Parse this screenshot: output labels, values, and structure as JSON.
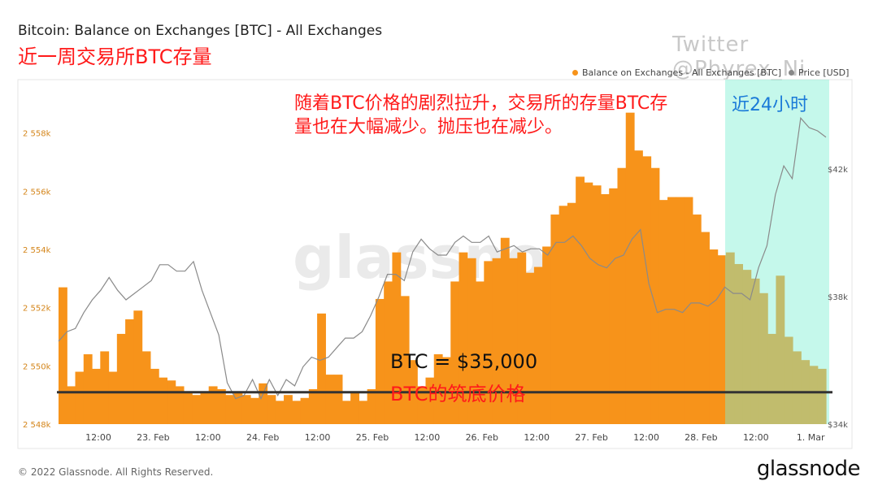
{
  "title": "Bitcoin: Balance on Exchanges [BTC] - All Exchanges",
  "watermark_text": "Twitter @Phyrex_Ni",
  "annotation_title": "近一周交易所BTC存量",
  "annotation_main": "随着BTC价格的剧烈拉升，交易所的存量BTC存量也在大幅减少。抛压也在减少。",
  "annotation_24h": "近24小时",
  "annotation_price": "BTC = $35,000",
  "annotation_bottom": "BTC的筑底价格",
  "legend": {
    "balance_label": "Balance on Exchanges - All Exchanges [BTC]",
    "balance_color": "#f7931a",
    "price_label": "Price [USD]",
    "price_color": "#888888"
  },
  "footer": "© 2022 Glassnode. All Rights Reserved.",
  "brand": "glassnode",
  "bg_watermark": "glassnode",
  "chart_data": {
    "type": "bar",
    "x_ticks": [
      "12:00",
      "23. Feb",
      "12:00",
      "24. Feb",
      "12:00",
      "25. Feb",
      "12:00",
      "26. Feb",
      "12:00",
      "27. Feb",
      "12:00",
      "28. Feb",
      "12:00",
      "1. Mar"
    ],
    "y_left_ticks": [
      "2 548k",
      "2 550k",
      "2 552k",
      "2 554k",
      "2 556k",
      "2 558k"
    ],
    "y_left_range": [
      2548000,
      2559500
    ],
    "y_right_ticks": [
      "$34k",
      "$38k",
      "$42k"
    ],
    "y_right_range": [
      34000,
      44500
    ],
    "threshold_price": 35000,
    "highlight_label": "近24小时",
    "balance_series": [
      2552700,
      2549300,
      2549800,
      2550400,
      2549900,
      2550500,
      2549800,
      2551100,
      2551600,
      2551900,
      2550500,
      2549900,
      2549600,
      2549500,
      2549300,
      2549100,
      2549000,
      2549100,
      2549300,
      2549200,
      2549000,
      2549100,
      2549000,
      2548900,
      2549400,
      2549000,
      2548800,
      2549000,
      2548800,
      2548900,
      2549200,
      2551800,
      2549700,
      2549700,
      2548800,
      2549100,
      2548800,
      2549200,
      2552300,
      2552900,
      2553900,
      2552400,
      2550200,
      2549300,
      2549600,
      2550400,
      2550300,
      2552900,
      2553900,
      2553700,
      2552900,
      2553600,
      2553700,
      2554400,
      2553700,
      2553900,
      2553200,
      2553400,
      2554100,
      2555200,
      2555500,
      2555600,
      2556500,
      2556300,
      2556200,
      2555900,
      2556100,
      2556800,
      2558700,
      2557400,
      2557200,
      2556800,
      2555700,
      2555800,
      2555800,
      2555800,
      2555200,
      2554600,
      2554000,
      2553800,
      2553900,
      2553500,
      2553300,
      2553000,
      2552500,
      2551100,
      2553100,
      2551000,
      2550500,
      2550200,
      2550000,
      2549900
    ],
    "price_series": [
      36600,
      36900,
      37000,
      37500,
      37900,
      38200,
      38600,
      38200,
      37900,
      38100,
      38300,
      38500,
      39000,
      39000,
      38800,
      38800,
      39100,
      38200,
      37500,
      36800,
      35300,
      34800,
      34900,
      35400,
      34800,
      35400,
      34900,
      35400,
      35200,
      35800,
      36100,
      36000,
      36100,
      36400,
      36700,
      36700,
      36900,
      37400,
      38000,
      38700,
      38700,
      38500,
      39400,
      39800,
      39500,
      39300,
      39300,
      39700,
      39900,
      39700,
      39700,
      39900,
      39400,
      39500,
      39600,
      39400,
      39500,
      39500,
      39300,
      39700,
      39700,
      39900,
      39600,
      39200,
      39000,
      38900,
      39200,
      39300,
      39800,
      40100,
      38400,
      37500,
      37600,
      37600,
      37500,
      37800,
      37800,
      37700,
      37900,
      38300,
      38100,
      38100,
      37900,
      38900,
      39600,
      41200,
      42100,
      41700,
      43600,
      43300,
      43200,
      43000
    ]
  }
}
